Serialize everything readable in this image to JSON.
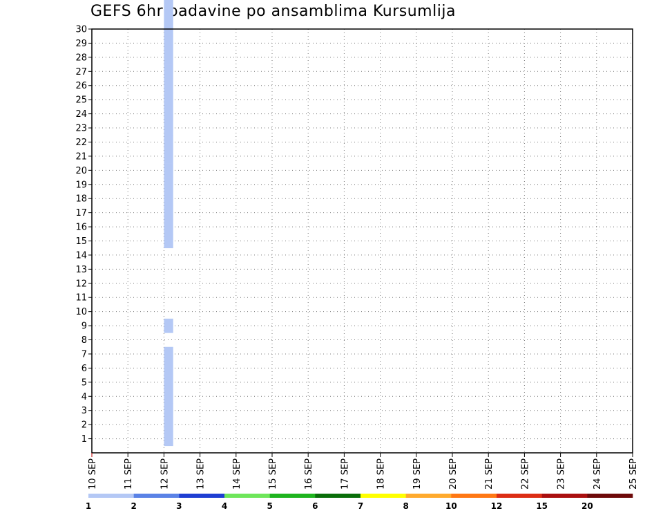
{
  "chart_data": {
    "type": "heatmap",
    "title": "GEFS 6hr padavine po ansamblima Kursumlija",
    "xlabel": "",
    "ylabel": "",
    "x_ticks": [
      "10 SEP",
      "11 SEP",
      "12 SEP",
      "13 SEP",
      "14 SEP",
      "15 SEP",
      "16 SEP",
      "17 SEP",
      "18 SEP",
      "19 SEP",
      "20 SEP",
      "21 SEP",
      "22 SEP",
      "23 SEP",
      "24 SEP",
      "25 SEP"
    ],
    "x_range_days": [
      0,
      15
    ],
    "steps_per_day": 4,
    "y_ticks": [
      1,
      2,
      3,
      4,
      5,
      6,
      7,
      8,
      9,
      10,
      11,
      12,
      13,
      14,
      15,
      16,
      17,
      18,
      19,
      20,
      21,
      22,
      23,
      24,
      25,
      26,
      27,
      28,
      29,
      30
    ],
    "y_range": [
      0,
      30
    ],
    "grid": true,
    "legend": {
      "placement": "bottom",
      "labels": [
        "1",
        "2",
        "3",
        "4",
        "5",
        "6",
        "7",
        "8",
        "10",
        "12",
        "15",
        "20"
      ],
      "colors": [
        "#b4c8f5",
        "#5a82e6",
        "#1e3ed2",
        "#6ee65a",
        "#1eb41e",
        "#0a6e0a",
        "#ffff00",
        "#ffaa2d",
        "#ff7814",
        "#dc2d14",
        "#aa0f0f",
        "#6e0a0a"
      ]
    },
    "cells": [
      [
        8,
        1,
        1
      ],
      [
        8,
        2,
        1
      ],
      [
        8,
        3,
        1
      ],
      [
        8,
        4,
        1
      ],
      [
        8,
        5,
        1
      ],
      [
        8,
        6,
        1
      ],
      [
        8,
        7,
        1
      ],
      [
        8,
        9,
        1
      ],
      [
        8,
        15,
        1
      ],
      [
        8,
        16,
        1
      ],
      [
        8,
        17,
        1
      ],
      [
        8,
        18,
        1
      ],
      [
        8,
        19,
        1
      ],
      [
        8,
        20,
        1
      ],
      [
        8,
        21,
        1
      ],
      [
        8,
        22,
        1
      ],
      [
        8,
        23,
        1
      ],
      [
        8,
        24,
        1
      ],
      [
        8,
        25,
        1
      ],
      [
        8,
        26,
        1
      ],
      [
        8,
        27,
        1
      ],
      [
        8,
        28,
        1
      ],
      [
        8,
        29,
        1
      ],
      [
        8,
        30,
        1
      ],
      [
        8,
        31,
        1
      ],
      [
        8,
        32,
        1
      ],
      [
        8,
        33,
        1
      ],
      [
        8,
        34,
        1
      ],
      [
        8,
        35,
        1
      ],
      [
        8,
        36,
        1
      ],
      [
        8,
        37,
        1
      ],
      [
        8,
        38,
        1
      ],
      [
        8,
        39,
        1
      ],
      [
        8,
        40,
        1
      ],
      [
        8,
        41,
        1
      ],
      [
        8,
        42,
        1
      ],
      [
        8,
        43,
        1
      ],
      [
        8,
        44,
        1
      ],
      [
        8,
        45,
        1
      ],
      [
        8,
        46,
        1
      ],
      [
        8,
        47,
        1
      ],
      [
        8,
        48,
        1
      ],
      [
        8,
        49,
        1
      ],
      [
        8,
        50,
        1
      ],
      [
        8,
        51,
        1
      ],
      [
        8,
        52,
        1
      ],
      [
        8,
        53,
        1
      ],
      [
        8,
        54,
        1
      ],
      [
        8,
        55,
        1
      ],
      [
        8,
        56,
        1
      ],
      [
        8,
        57,
        1
      ],
      [
        8,
        58,
        1
      ],
      [
        8,
        59,
        1
      ],
      [
        8,
        60,
        1
      ],
      [
        8,
        61,
        1
      ],
      [
        8,
        62,
        1
      ],
      [
        8,
        63,
        1
      ],
      [
        8,
        64,
        1
      ],
      [
        8,
        65,
        1
      ],
      [
        8,
        66,
        1
      ],
      [
        8,
        67,
        1
      ],
      [
        8,
        68,
        1
      ],
      [
        8,
        69,
        1
      ],
      [
        8,
        70,
        1
      ],
      [
        8,
        71,
        1
      ],
      [
        8,
        72,
        1
      ],
      [
        8,
        73,
        1
      ],
      [
        8,
        74,
        1
      ],
      [
        8,
        75,
        1
      ],
      [
        8,
        76,
        1
      ],
      [
        8,
        77,
        1
      ],
      [
        8,
        78,
        1
      ],
      [
        8,
        79,
        1
      ],
      [
        8,
        80,
        1
      ],
      [
        8,
        81,
        1
      ],
      [
        8,
        82,
        1
      ],
      [
        8,
        83,
        1
      ],
      [
        8,
        84,
        1
      ],
      [
        8,
        85,
        1
      ],
      [
        8,
        86,
        1
      ],
      [
        8,
        87,
        1
      ],
      [
        8,
        88,
        1
      ],
      [
        8,
        89,
        1
      ],
      [
        8,
        90,
        1
      ],
      [
        8,
        91,
        1
      ],
      [
        8,
        92,
        1
      ],
      [
        8,
        93,
        1
      ],
      [
        8,
        94,
        1
      ],
      [
        8,
        95,
        1
      ],
      [
        8,
        96,
        1
      ],
      [
        8,
        97,
        1
      ],
      [
        8,
        98,
        1
      ],
      [
        8,
        99,
        1
      ],
      [
        8,
        100,
        1
      ],
      [
        8,
        101,
        1
      ],
      [
        8,
        102,
        1
      ],
      [
        8,
        103,
        1
      ],
      [
        8,
        104,
        1
      ],
      [
        8,
        105,
        1
      ],
      [
        8,
        106,
        1
      ],
      [
        8,
        107,
        1
      ],
      [
        8,
        108,
        1
      ],
      [
        8,
        109,
        1
      ],
      [
        8,
        110,
        1
      ],
      [
        8,
        111,
        1
      ],
      [
        8,
        112,
        1
      ],
      [
        8,
        113,
        1
      ],
      [
        8,
        114,
        1
      ],
      [
        8,
        115,
        1
      ],
      [
        8,
        116,
        1
      ],
      [
        8,
        117,
        1
      ],
      [
        8,
        118,
        1
      ],
      [
        8,
        119,
        1
      ],
      [
        8,
        120,
        1
      ],
      [
        8,
        121,
        1
      ],
      [
        8,
        122,
        1
      ],
      [
        8,
        123,
        1
      ],
      [
        8,
        124,
        1
      ],
      [
        8,
        125,
        1
      ],
      [
        8,
        126,
        1
      ],
      [
        8,
        127,
        1
      ],
      [
        8,
        128,
        1
      ],
      [
        8,
        129,
        1
      ],
      [
        8,
        130,
        1
      ],
      [
        8,
        131,
        1
      ],
      [
        8,
        132,
        1
      ],
      [
        8,
        133,
        1
      ],
      [
        8,
        134,
        1
      ],
      [
        8,
        135,
        1
      ],
      [
        8,
        136,
        1
      ],
      [
        8,
        137,
        1
      ],
      [
        8,
        138,
        1
      ],
      [
        8,
        139,
        1
      ],
      [
        8,
        140,
        1
      ],
      [
        8,
        141,
        1
      ],
      [
        8,
        142,
        1
      ],
      [
        8,
        143,
        1
      ],
      [
        8,
        144,
        1
      ],
      [
        8,
        145,
        1
      ],
      [
        8,
        146,
        1
      ],
      [
        8,
        147,
        1
      ],
      [
        8,
        148,
        1
      ],
      [
        8,
        149,
        1
      ],
      [
        8,
        150,
        1
      ],
      [
        8,
        151,
        1
      ],
      [
        8,
        152,
        1
      ],
      [
        8,
        153,
        1
      ],
      [
        8,
        154,
        1
      ],
      [
        8,
        155,
        1
      ],
      [
        8,
        156,
        1
      ],
      [
        8,
        157,
        1
      ],
      [
        8,
        158,
        1
      ],
      [
        8,
        159,
        1
      ],
      [
        8,
        160,
        1
      ],
      [
        8,
        161,
        1
      ],
      [
        8,
        162,
        1
      ],
      [
        8,
        163,
        1
      ],
      [
        8,
        164,
        1
      ],
      [
        8,
        165,
        1
      ],
      [
        8,
        166,
        1
      ],
      [
        8,
        167,
        1
      ],
      [
        8,
        168,
        1
      ],
      [
        8,
        169,
        1
      ],
      [
        8,
        170,
        1
      ],
      [
        8,
        171,
        1
      ],
      [
        8,
        172,
        1
      ],
      [
        8,
        173,
        1
      ],
      [
        8,
        174,
        1
      ],
      [
        8,
        175,
        1
      ],
      [
        8,
        176,
        1
      ],
      [
        8,
        177,
        1
      ],
      [
        8,
        178,
        1
      ],
      [
        8,
        179,
        1
      ],
      [
        8,
        180,
        1
      ],
      [
        8,
        181,
        1
      ],
      [
        8,
        182,
        1
      ],
      [
        8,
        183,
        1
      ],
      [
        8,
        184,
        1
      ],
      [
        8,
        185,
        1
      ],
      [
        8,
        186,
        1
      ],
      [
        8,
        187,
        1
      ],
      [
        8,
        188,
        1
      ],
      [
        8,
        189,
        1
      ],
      [
        8,
        190,
        1
      ],
      [
        8,
        191,
        1
      ],
      [
        8,
        192,
        1
      ],
      [
        8,
        193,
        1
      ],
      [
        8,
        194,
        1
      ],
      [
        8,
        195,
        1
      ],
      [
        8,
        196,
        1
      ],
      [
        8,
        197,
        1
      ],
      [
        8,
        198,
        1
      ],
      [
        8,
        199,
        1
      ],
      [
        8,
        200,
        1
      ]
    ]
  }
}
